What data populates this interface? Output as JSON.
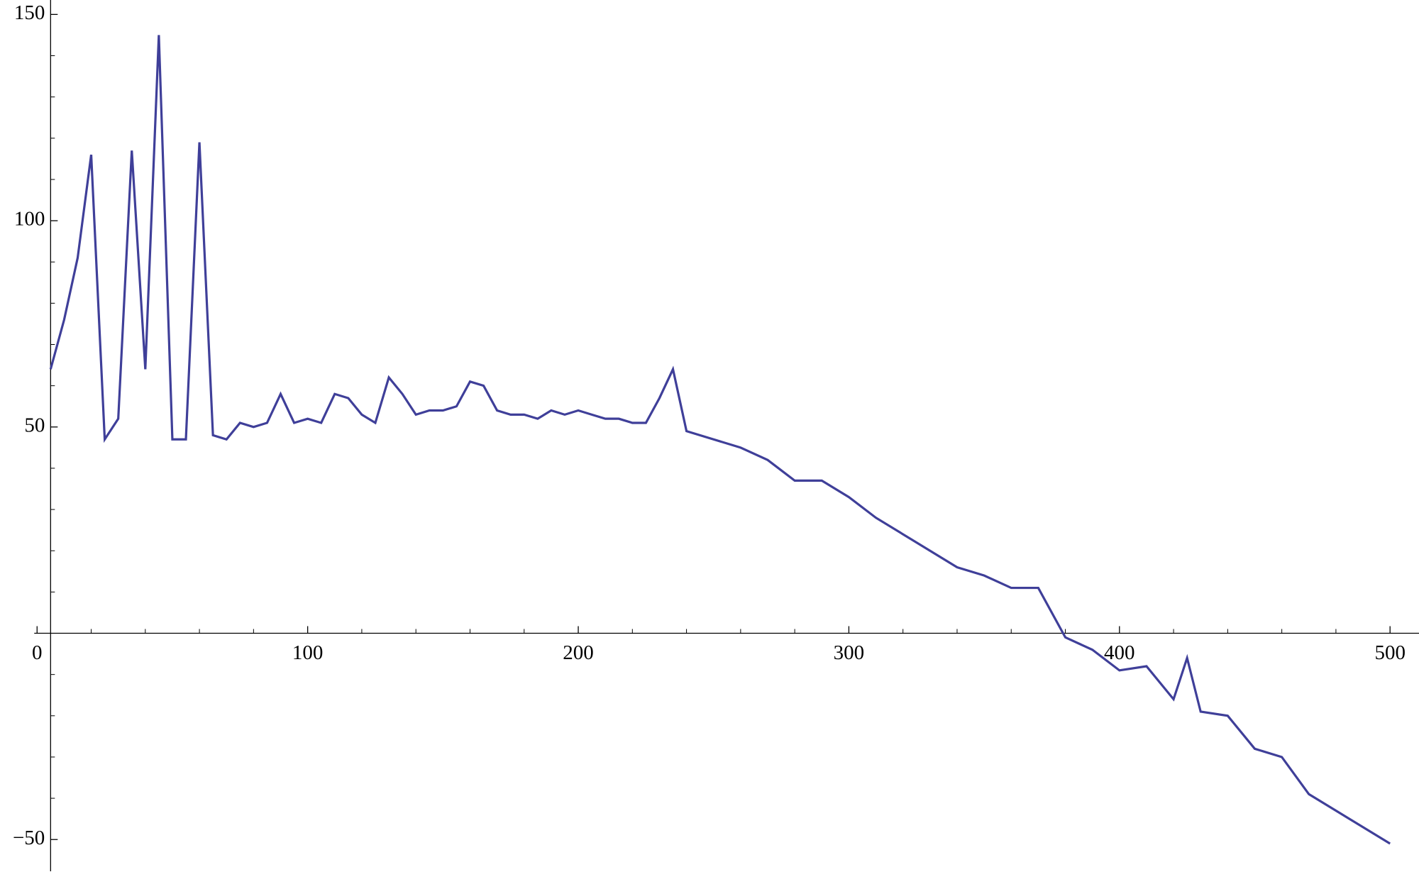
{
  "chart_data": {
    "type": "line",
    "x": [
      5,
      10,
      15,
      20,
      25,
      30,
      35,
      40,
      45,
      50,
      55,
      60,
      65,
      70,
      75,
      80,
      85,
      90,
      95,
      100,
      105,
      110,
      115,
      120,
      125,
      130,
      135,
      140,
      145,
      150,
      155,
      160,
      165,
      170,
      175,
      180,
      185,
      190,
      195,
      200,
      205,
      210,
      215,
      220,
      225,
      230,
      235,
      240,
      260,
      270,
      280,
      290,
      300,
      310,
      340,
      350,
      360,
      370,
      380,
      390,
      400,
      410,
      420,
      425,
      430,
      440,
      450,
      460,
      470,
      500
    ],
    "series": [
      {
        "color": "#3f3f99",
        "values": [
          64,
          76,
          91,
          116,
          47,
          52,
          117,
          64,
          145,
          47,
          47,
          119,
          48,
          47,
          51,
          50,
          51,
          58,
          51,
          52,
          51,
          58,
          57,
          53,
          51,
          62,
          58,
          53,
          54,
          54,
          55,
          61,
          60,
          54,
          53,
          53,
          52,
          54,
          53,
          54,
          53,
          52,
          52,
          51,
          51,
          57,
          64,
          49,
          45,
          42,
          37,
          37,
          33,
          28,
          16,
          14,
          11,
          11,
          -1,
          -4,
          -9,
          -8,
          -16,
          -6,
          -19,
          -20,
          -28,
          -30,
          -39,
          -51
        ]
      }
    ],
    "xlim": [
      -13.7,
      510.7
    ],
    "ylim": [
      -57.7,
      153.5
    ],
    "axes_origin": [
      5,
      0
    ],
    "xticks": [
      0,
      100,
      200,
      300,
      400,
      500
    ],
    "yticks": [
      {
        "value": -50,
        "label": "−50"
      },
      50,
      100,
      150
    ],
    "xminorticks": [
      20,
      40,
      60,
      80,
      120,
      140,
      160,
      180,
      220,
      240,
      260,
      280,
      320,
      340,
      360,
      380,
      420,
      440,
      460,
      480
    ],
    "yminorticks": [
      -40,
      -30,
      -20,
      -10,
      10,
      20,
      30,
      40,
      60,
      70,
      80,
      90,
      110,
      120,
      130,
      140
    ]
  }
}
